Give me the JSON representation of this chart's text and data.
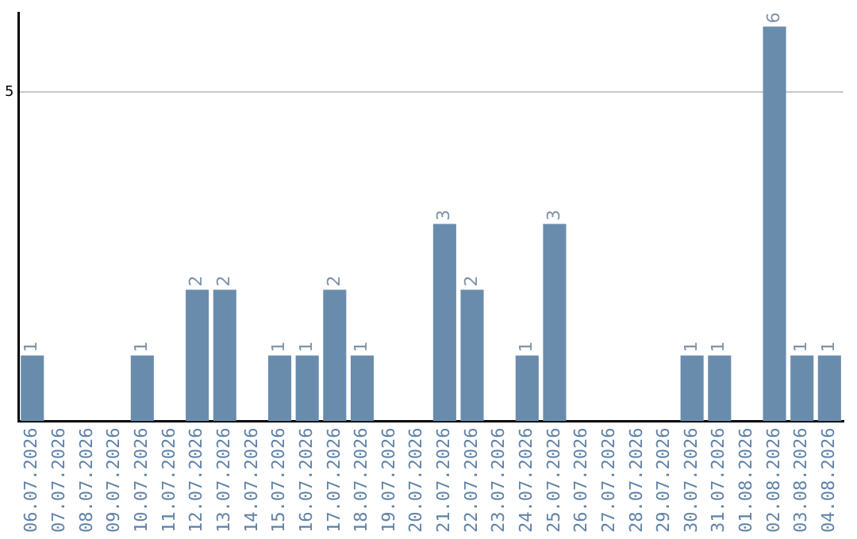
{
  "chart_data": {
    "type": "bar",
    "categories": [
      "06.07.2026",
      "07.07.2026",
      "08.07.2026",
      "09.07.2026",
      "10.07.2026",
      "11.07.2026",
      "12.07.2026",
      "13.07.2026",
      "14.07.2026",
      "15.07.2026",
      "16.07.2026",
      "17.07.2026",
      "18.07.2026",
      "19.07.2026",
      "20.07.2026",
      "21.07.2026",
      "22.07.2026",
      "23.07.2026",
      "24.07.2026",
      "25.07.2026",
      "26.07.2026",
      "27.07.2026",
      "28.07.2026",
      "29.07.2026",
      "30.07.2026",
      "31.07.2026",
      "01.08.2026",
      "02.08.2026",
      "03.08.2026",
      "04.08.2026"
    ],
    "values": [
      1,
      0,
      0,
      0,
      1,
      0,
      2,
      2,
      0,
      1,
      1,
      2,
      1,
      0,
      0,
      3,
      2,
      0,
      1,
      3,
      0,
      0,
      0,
      0,
      1,
      1,
      0,
      6,
      1,
      1
    ],
    "value_labels": [
      "1",
      null,
      null,
      null,
      "1",
      null,
      "2",
      "2",
      null,
      "1",
      "1",
      "2",
      "1",
      null,
      null,
      "3",
      "2",
      null,
      "1",
      "3",
      null,
      null,
      null,
      null,
      "1",
      "1",
      null,
      "6",
      "1",
      "1"
    ],
    "color": "#6a8cac",
    "ylim": [
      0,
      6.2
    ],
    "yticks": [
      5
    ],
    "grid": "y",
    "legend": false
  }
}
